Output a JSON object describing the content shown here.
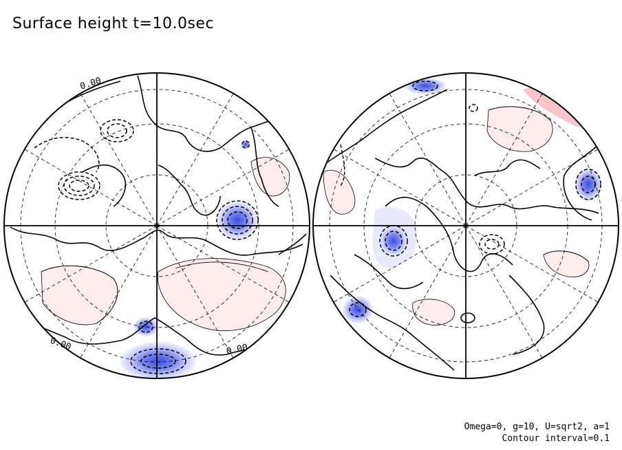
{
  "title": "Surface height t=10.0sec",
  "caption": {
    "params": "Omega=0, g=10, U=sqrt2, a=1",
    "interval": "Contour interval=0.1"
  },
  "contour_labels": [
    "0.00",
    "0.00",
    "0.00"
  ],
  "colors": {
    "negative": "#5a6ae8",
    "negative_light": "#e6e8fb",
    "positive": "#fce8e8",
    "positive_strong": "#f2b8bc",
    "line": "#000000"
  }
}
